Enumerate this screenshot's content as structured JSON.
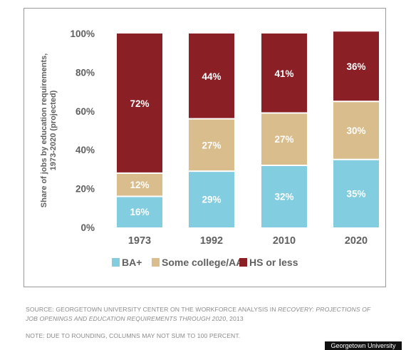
{
  "chart_data": {
    "type": "bar",
    "stacked": true,
    "categories": [
      "1973",
      "1992",
      "2010",
      "2020"
    ],
    "series": [
      {
        "name": "BA+",
        "color": "#82cde0",
        "values": [
          16,
          29,
          32,
          35
        ],
        "labels": [
          "16%",
          "29%",
          "32%",
          "35%"
        ]
      },
      {
        "name": "Some college/AA",
        "color": "#d9bd8c",
        "values": [
          12,
          27,
          27,
          30
        ],
        "labels": [
          "12%",
          "27%",
          "27%",
          "30%"
        ]
      },
      {
        "name": "HS or less",
        "color": "#8b1f26",
        "values": [
          72,
          44,
          41,
          36
        ],
        "labels": [
          "72%",
          "44%",
          "41%",
          "36%"
        ]
      }
    ],
    "title": "",
    "xlabel": "",
    "ylabel_lines": [
      "Share of jobs by education requirements,",
      "1973-2020 (projected)"
    ],
    "ylim": [
      0,
      100
    ],
    "yticks": [
      0,
      20,
      40,
      60,
      80,
      100
    ],
    "ytick_labels": [
      "0%",
      "20%",
      "40%",
      "60%",
      "80%",
      "100%"
    ],
    "legend_placement": "bottom",
    "grid": false
  },
  "source": {
    "line1_prefix": "SOURCE: GEORGETOWN UNIVERSITY CENTER ON THE WORKFORCE ANALYSIS IN ",
    "line1_italic": "RECOVERY: PROJECTIONS OF",
    "line2_italic": "JOB OPENINGS AND EDUCATION REQUIREMENTS THROUGH 2020",
    "line2_suffix": ", 2013",
    "note": "NOTE: DUE TO ROUNDING, COLUMNS MAY NOT SUM TO 100 PERCENT."
  },
  "credit": "Georgetown University"
}
